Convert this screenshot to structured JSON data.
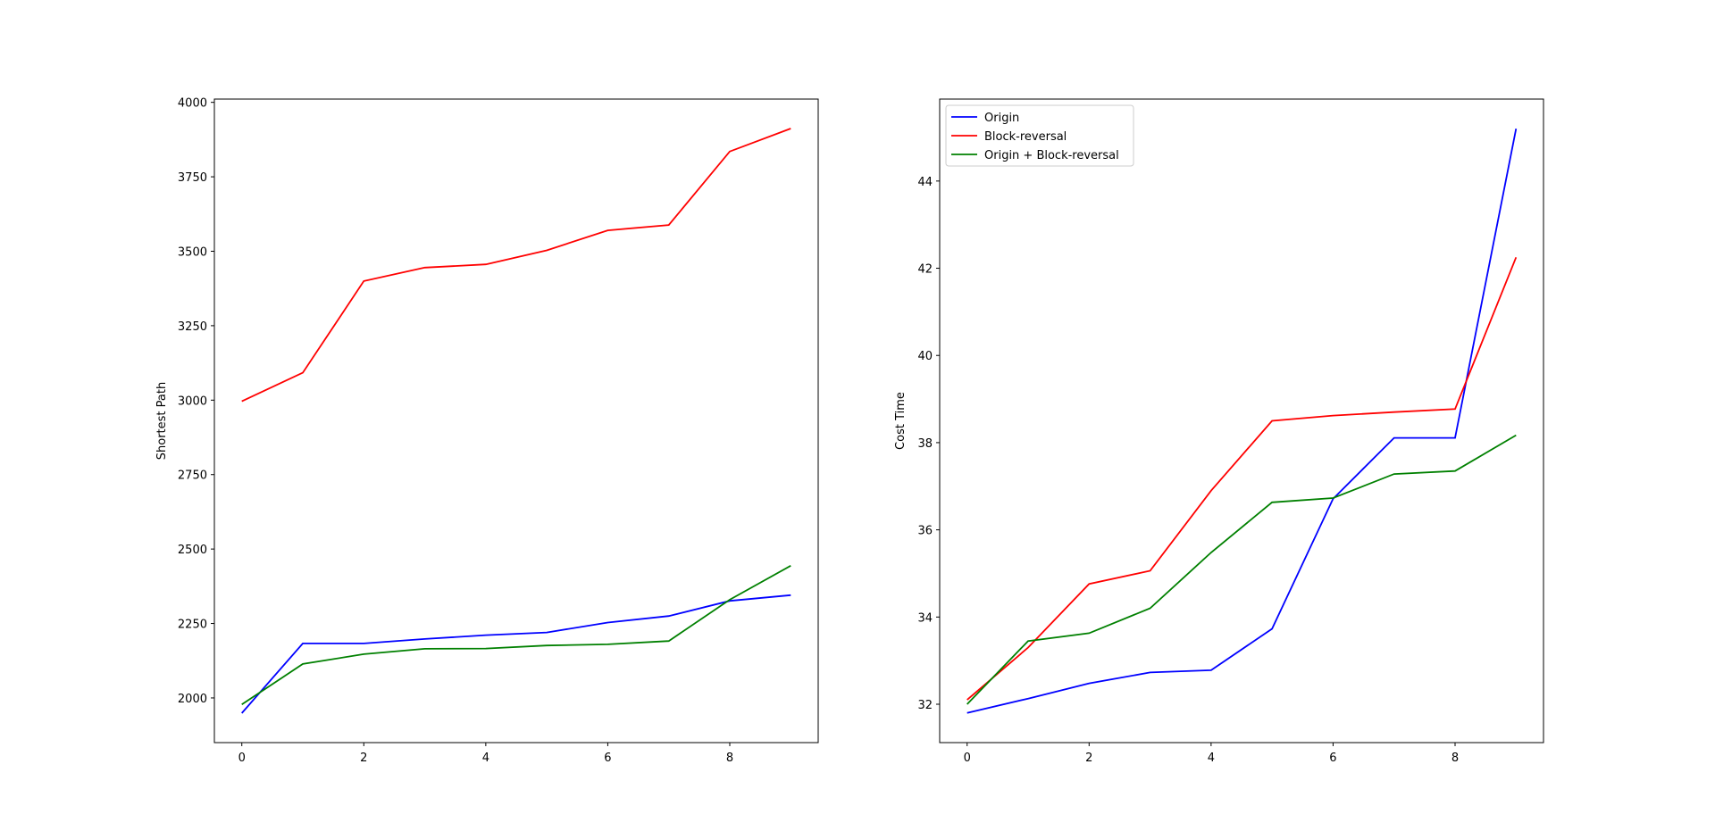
{
  "colors": {
    "Origin": "#0000ff",
    "Block-reversal": "#ff0000",
    "Origin + Block-reversal": "#008000"
  },
  "chart_data": [
    {
      "type": "line",
      "title": "",
      "xlabel": "",
      "ylabel": "Shortest Path",
      "x": [
        0,
        1,
        2,
        3,
        4,
        5,
        6,
        7,
        8,
        9
      ],
      "xlim": [
        -0.45,
        9.45
      ],
      "ylim": [
        1850,
        4011
      ],
      "xticks": [
        0,
        2,
        4,
        6,
        8
      ],
      "yticks": [
        2000,
        2250,
        2500,
        2750,
        3000,
        3250,
        3500,
        3750,
        4000
      ],
      "grid": false,
      "legend": null,
      "series": [
        {
          "name": "Origin",
          "values": [
            1949,
            2183,
            2183,
            2198,
            2211,
            2220,
            2253,
            2275,
            2326,
            2345
          ]
        },
        {
          "name": "Block-reversal",
          "values": [
            2996,
            3092,
            3400,
            3445,
            3456,
            3503,
            3570,
            3588,
            3835,
            3912
          ]
        },
        {
          "name": "Origin + Block-reversal",
          "values": [
            1978,
            2114,
            2147,
            2165,
            2166,
            2176,
            2180,
            2191,
            2330,
            2444
          ]
        }
      ]
    },
    {
      "type": "line",
      "title": "",
      "xlabel": "",
      "ylabel": "Cost Time",
      "x": [
        0,
        1,
        2,
        3,
        4,
        5,
        6,
        7,
        8,
        9
      ],
      "xlim": [
        -0.45,
        9.45
      ],
      "ylim": [
        31.12,
        45.88
      ],
      "xticks": [
        0,
        2,
        4,
        6,
        8
      ],
      "yticks": [
        32,
        34,
        36,
        38,
        40,
        42,
        44
      ],
      "grid": false,
      "legend": "top-left",
      "series": [
        {
          "name": "Origin",
          "values": [
            31.8,
            32.13,
            32.48,
            32.73,
            32.78,
            33.73,
            36.71,
            38.11,
            38.11,
            45.2
          ]
        },
        {
          "name": "Block-reversal",
          "values": [
            32.1,
            33.3,
            34.76,
            35.06,
            36.9,
            38.5,
            38.62,
            38.7,
            38.77,
            42.25
          ]
        },
        {
          "name": "Origin + Block-reversal",
          "values": [
            32.0,
            33.45,
            33.63,
            34.2,
            35.48,
            36.63,
            36.73,
            37.28,
            37.35,
            38.17
          ]
        }
      ]
    }
  ]
}
